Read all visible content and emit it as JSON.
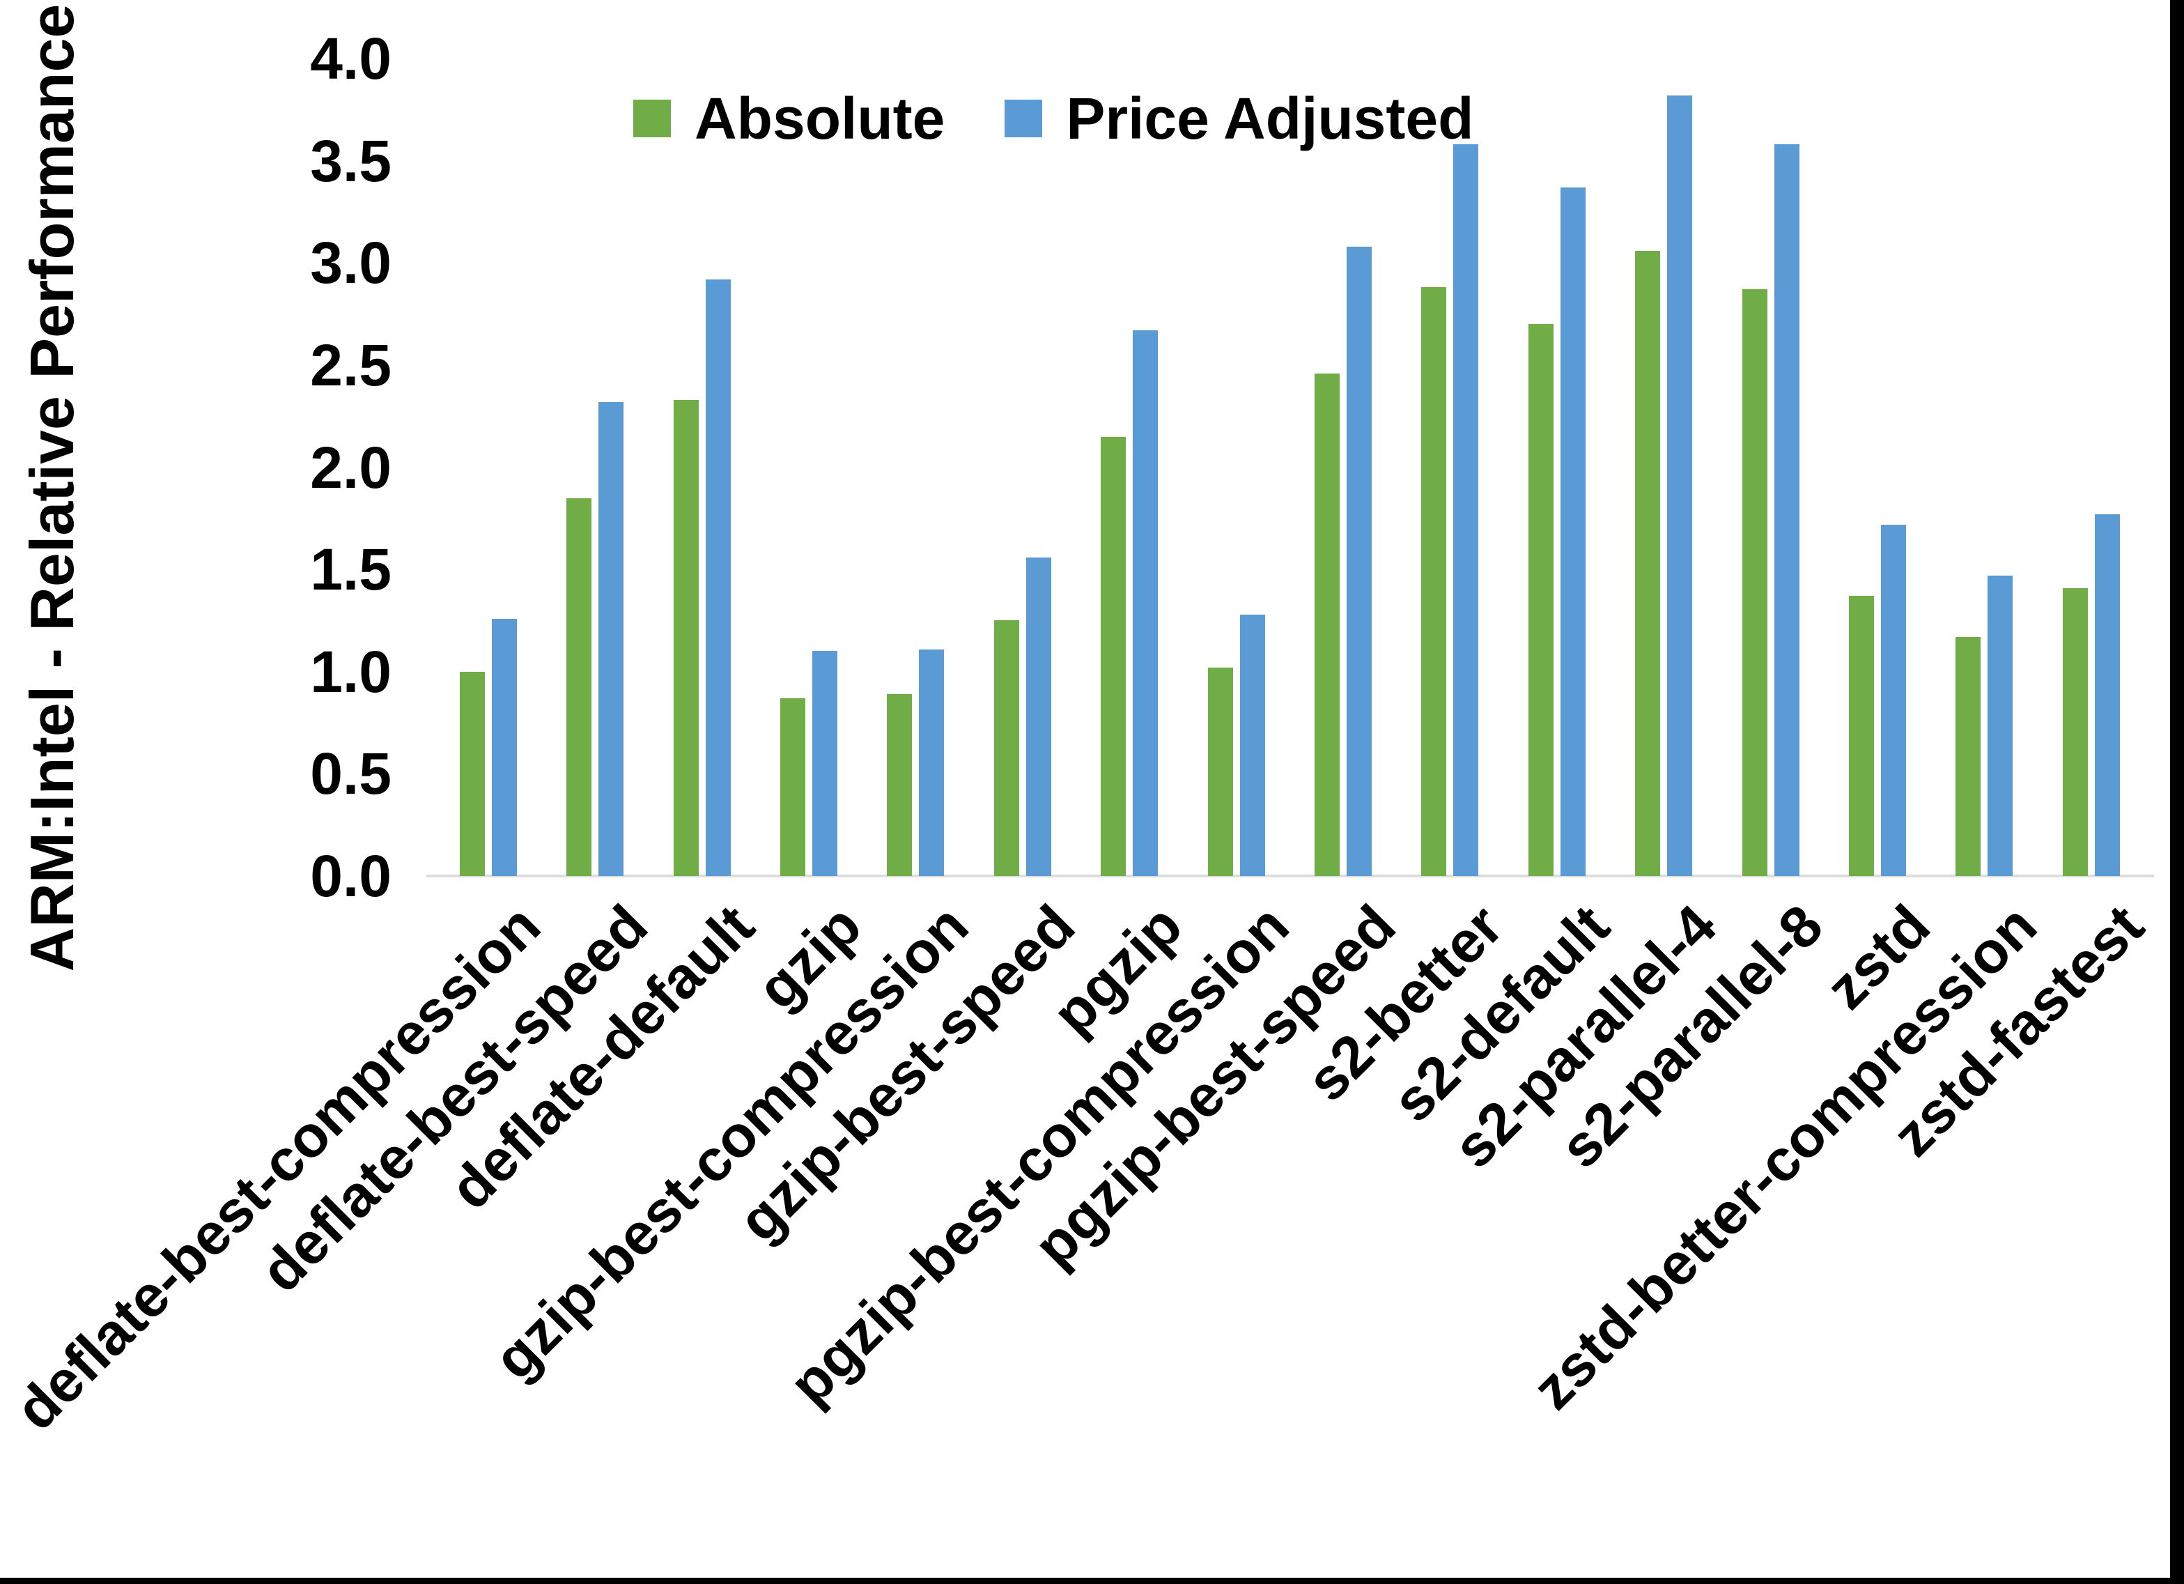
{
  "page": {
    "background": "#FFFFFF",
    "frame_right_color": "#000000",
    "frame_bottom_color": "#000000"
  },
  "chart_data": {
    "type": "bar",
    "title": "",
    "xlabel": "",
    "ylabel": "ARM:Intel - Relative Performance",
    "ylim": [
      0.0,
      4.0
    ],
    "y_ticks": [
      "0.0",
      "0.5",
      "1.0",
      "1.5",
      "2.0",
      "2.5",
      "3.0",
      "3.5",
      "4.0"
    ],
    "grid": false,
    "legend_position": "top-center",
    "axis_line_color": "#dcdcdc",
    "text_color": "#000000",
    "categories": [
      "deflate-best-compression",
      "deflate-best-speed",
      "deflate-default",
      "gzip",
      "gzip-best-compression",
      "gzip-best-speed",
      "pgzip",
      "pgzip-best-compression",
      "pgzip-best-speed",
      "s2-better",
      "s2-default",
      "s2-parallel-4",
      "s2-parallel-8",
      "zstd",
      "zstd-better-compression",
      "zstd-fastest"
    ],
    "series": [
      {
        "name": "Absolute",
        "color": "#70AD47",
        "values": [
          1.0,
          1.85,
          2.33,
          0.87,
          0.89,
          1.25,
          2.15,
          1.02,
          2.46,
          2.88,
          2.7,
          3.06,
          2.87,
          1.37,
          1.17,
          1.41
        ]
      },
      {
        "name": "Price Adjusted",
        "color": "#5B9BD5",
        "values": [
          1.26,
          2.32,
          2.92,
          1.1,
          1.11,
          1.56,
          2.67,
          1.28,
          3.08,
          3.58,
          3.37,
          3.82,
          3.58,
          1.72,
          1.47,
          1.77
        ]
      }
    ]
  }
}
